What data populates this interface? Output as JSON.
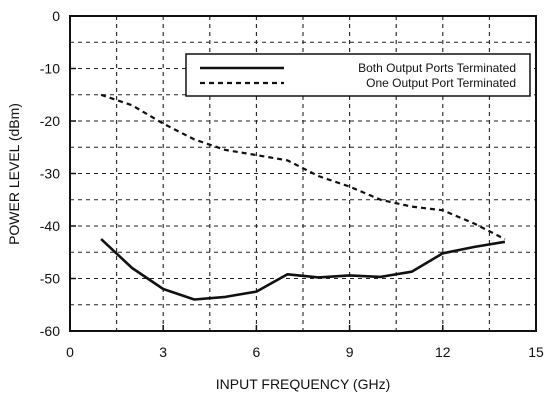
{
  "chart_data": {
    "type": "line",
    "title": "",
    "xlabel": "INPUT FREQUENCY (GHz)",
    "ylabel": "POWER LEVEL (dBm)",
    "xlim": [
      0,
      15
    ],
    "ylim": [
      -60,
      0
    ],
    "xticks": [
      0,
      3,
      6,
      9,
      12,
      15
    ],
    "xtick_labels": [
      "0",
      "3",
      "6",
      "9",
      "12",
      "15"
    ],
    "yticks": [
      0,
      -10,
      -20,
      -30,
      -40,
      -50,
      -60
    ],
    "ytick_labels": [
      "0",
      "-10",
      "-20",
      "-30",
      "-40",
      "-50",
      "-60"
    ],
    "grid": true,
    "grid_style": "dashed",
    "legend_position": "top-right",
    "series": [
      {
        "name": "Both Output Ports Terminated",
        "line_style": "solid",
        "color": "#111111",
        "x": [
          1,
          2,
          3,
          4,
          5,
          6,
          7,
          8,
          9,
          10,
          11,
          12,
          13,
          14
        ],
        "y": [
          -42.5,
          -48,
          -52,
          -54,
          -53.5,
          -52.5,
          -49.2,
          -49.8,
          -49.4,
          -49.7,
          -48.7,
          -45.2,
          -44,
          -43
        ]
      },
      {
        "name": "One Output Port Terminated",
        "line_style": "dashed",
        "color": "#111111",
        "x": [
          1,
          2,
          3,
          4,
          5,
          6,
          7,
          8,
          9,
          10,
          11,
          12,
          13,
          14
        ],
        "y": [
          -15,
          -17,
          -20.5,
          -23.5,
          -25.5,
          -26.5,
          -27.5,
          -30.5,
          -32.5,
          -35,
          -36.3,
          -37,
          -39.5,
          -42.5
        ]
      }
    ]
  }
}
